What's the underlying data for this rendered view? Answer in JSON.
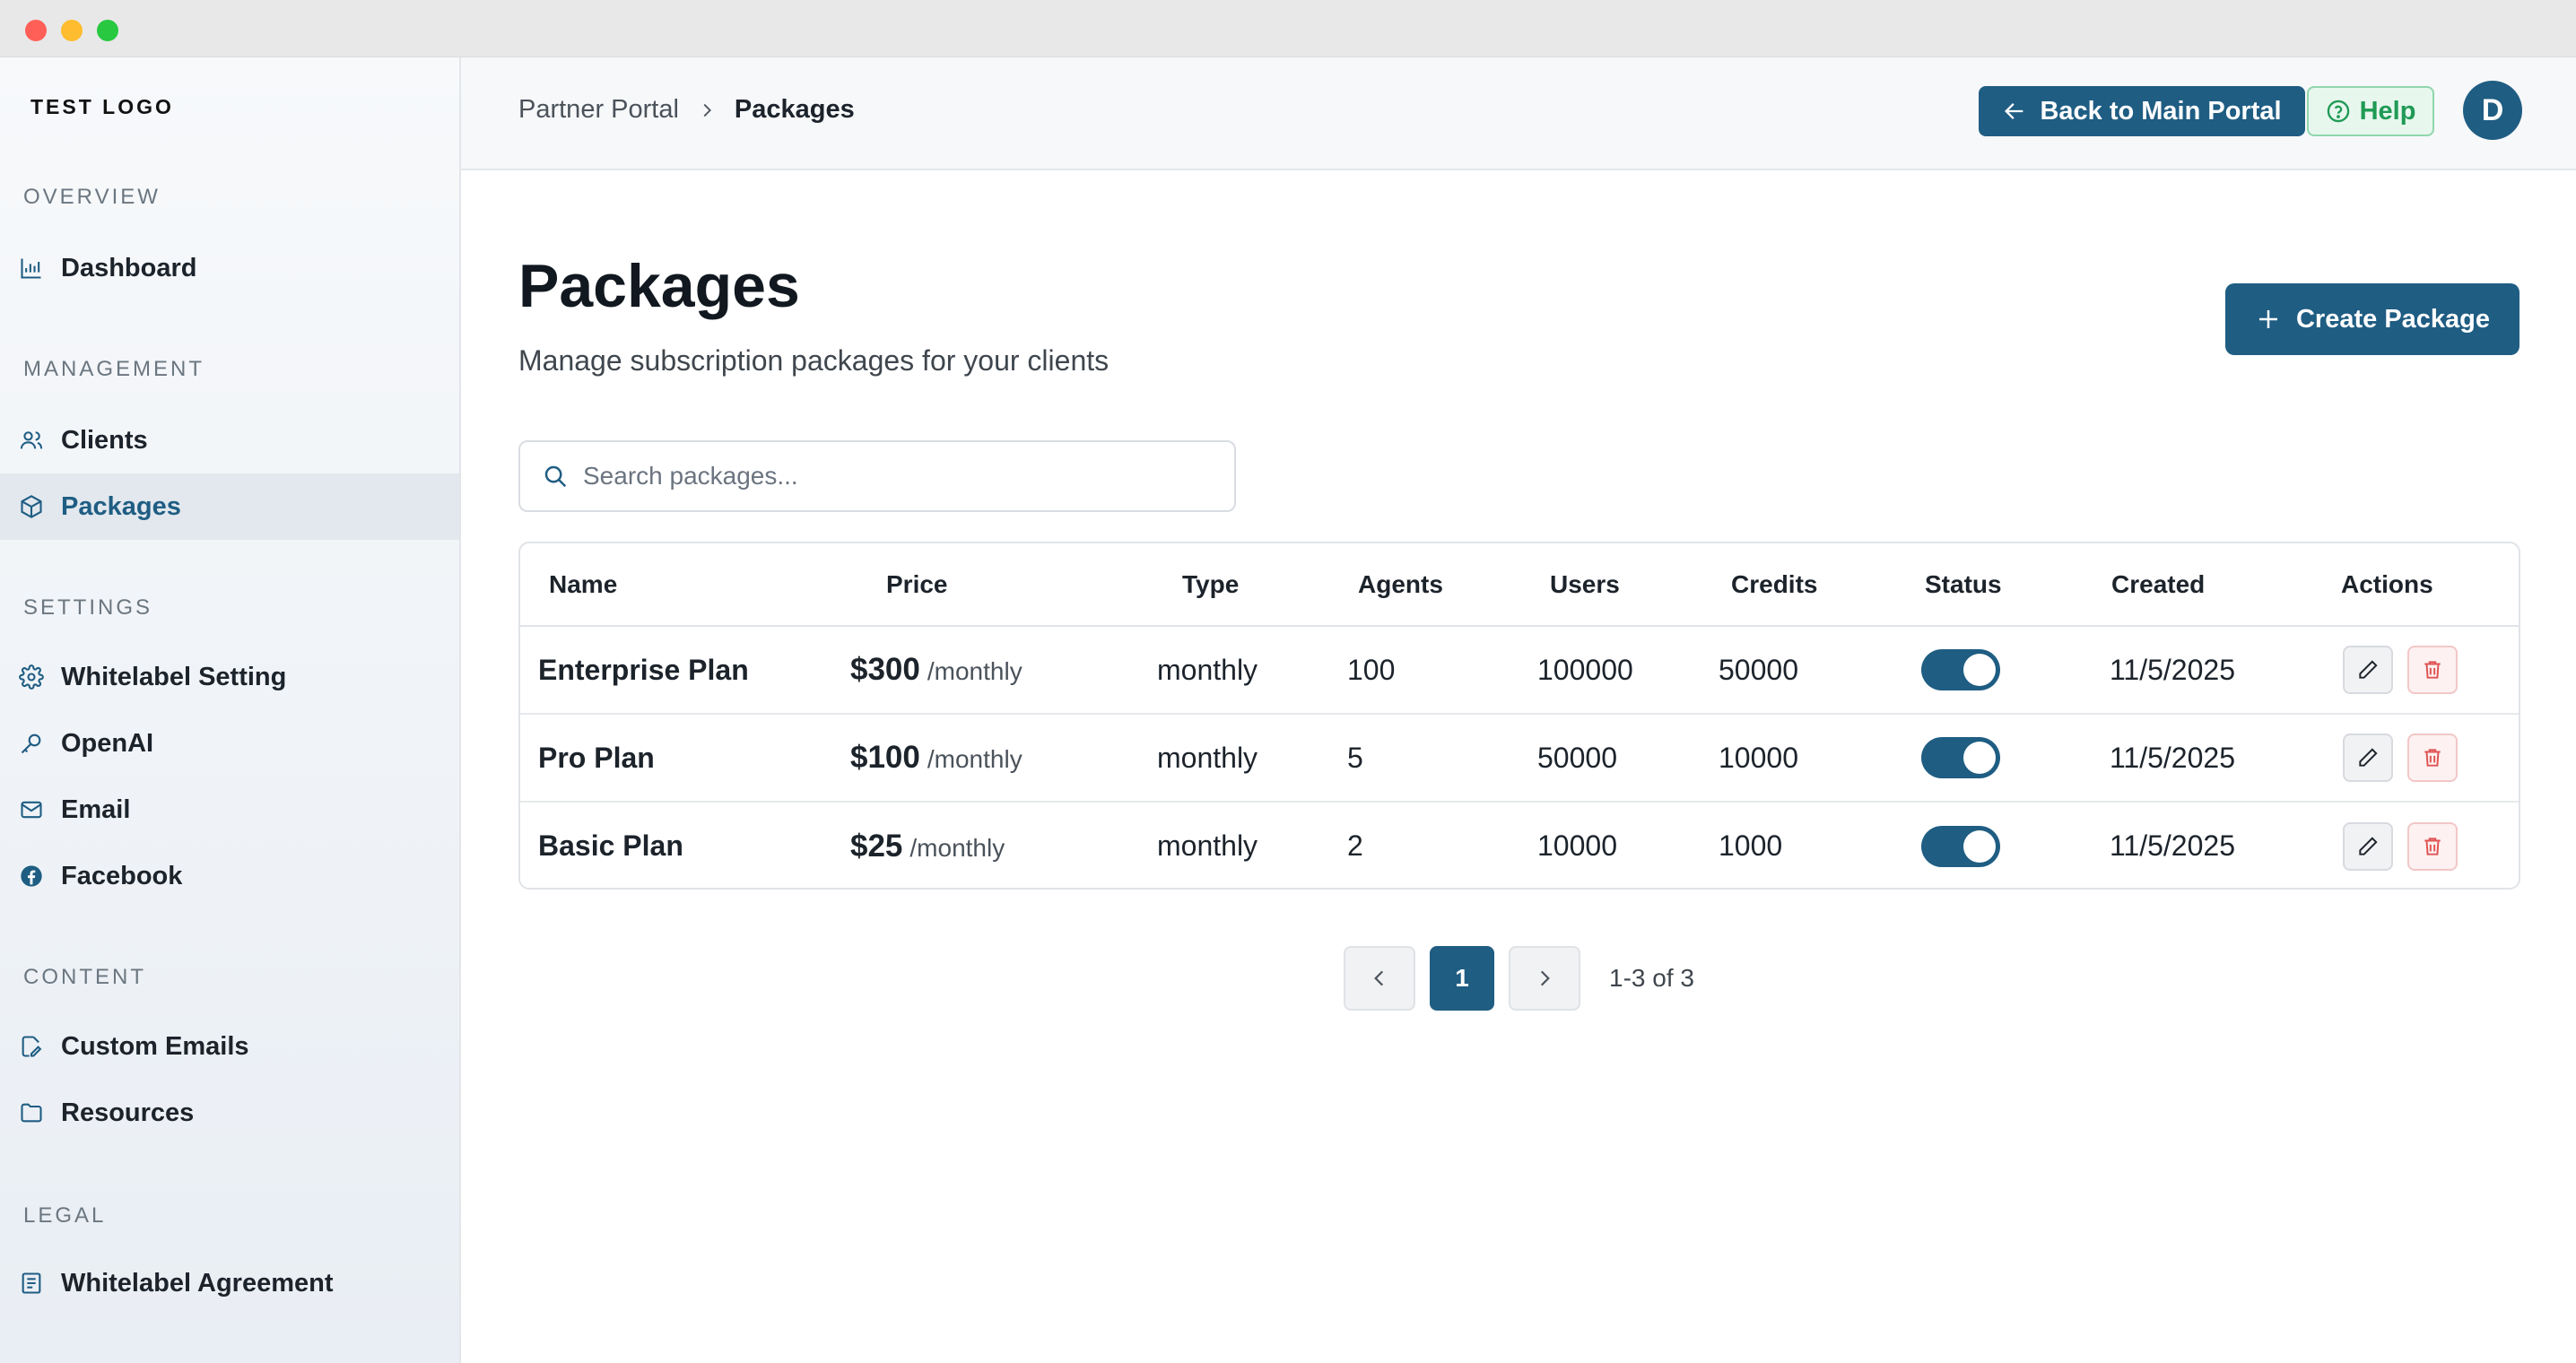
{
  "sidebar": {
    "logo": "TEST LOGO",
    "sections": {
      "overview": "OVERVIEW",
      "management": "MANAGEMENT",
      "settings": "SETTINGS",
      "content": "CONTENT",
      "legal": "LEGAL"
    },
    "items": {
      "dashboard": "Dashboard",
      "clients": "Clients",
      "packages": "Packages",
      "whitelabel_setting": "Whitelabel Setting",
      "openai": "OpenAI",
      "email": "Email",
      "facebook": "Facebook",
      "custom_emails": "Custom Emails",
      "resources": "Resources",
      "whitelabel_agreement": "Whitelabel Agreement"
    },
    "active_item": "packages"
  },
  "header": {
    "breadcrumb": [
      "Partner Portal",
      "Packages"
    ],
    "back_button": "Back to Main Portal",
    "help_button": "Help",
    "avatar_initial": "D"
  },
  "main": {
    "title": "Packages",
    "subtitle": "Manage subscription packages for your clients",
    "create_button": "Create Package",
    "search_placeholder": "Search packages...",
    "table": {
      "columns": [
        "Name",
        "Price",
        "Type",
        "Agents",
        "Users",
        "Credits",
        "Status",
        "Created",
        "Actions"
      ],
      "rows": [
        {
          "name": "Enterprise Plan",
          "price": "$300",
          "period": "/monthly",
          "type": "monthly",
          "agents": "100",
          "users": "100000",
          "credits": "50000",
          "status": "active",
          "created": "11/5/2025"
        },
        {
          "name": "Pro Plan",
          "price": "$100",
          "period": "/monthly",
          "type": "monthly",
          "agents": "5",
          "users": "50000",
          "credits": "10000",
          "status": "active",
          "created": "11/5/2025"
        },
        {
          "name": "Basic Plan",
          "price": "$25",
          "period": "/monthly",
          "type": "monthly",
          "agents": "2",
          "users": "10000",
          "credits": "1000",
          "status": "active",
          "created": "11/5/2025"
        }
      ]
    },
    "pagination": {
      "current_page": "1",
      "info": "1-3 of 3"
    }
  },
  "colors": {
    "primary": "#1f5d83",
    "help_green": "#1f9a55",
    "delete_red": "#e05252"
  }
}
